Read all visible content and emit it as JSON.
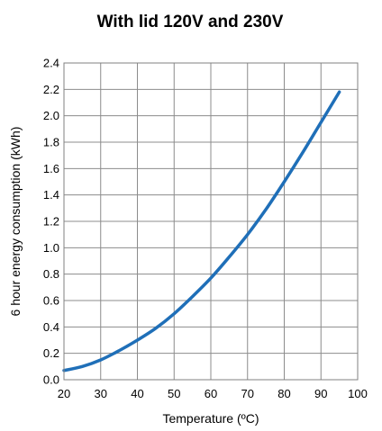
{
  "chart_data": {
    "type": "line",
    "title": "With lid 120V and 230V",
    "xlabel": "Temperature (ºC)",
    "ylabel": "6 hour energy consumption (kWh)",
    "xlim": [
      20,
      100
    ],
    "ylim": [
      0,
      2.4
    ],
    "x_ticks": [
      "20",
      "30",
      "40",
      "50",
      "60",
      "70",
      "80",
      "90",
      "100"
    ],
    "y_ticks": [
      "0.0",
      "0.2",
      "0.4",
      "0.6",
      "0.8",
      "1.0",
      "1.2",
      "1.4",
      "1.6",
      "1.8",
      "2.0",
      "2.2",
      "2.4"
    ],
    "grid": true,
    "legend": "none",
    "series": [
      {
        "color": "#1f6fb8",
        "x": [
          20,
          25,
          30,
          35,
          40,
          45,
          50,
          55,
          60,
          65,
          70,
          75,
          80,
          85,
          90,
          95
        ],
        "y": [
          0.07,
          0.1,
          0.15,
          0.22,
          0.3,
          0.39,
          0.5,
          0.63,
          0.77,
          0.93,
          1.1,
          1.29,
          1.5,
          1.72,
          1.95,
          2.18
        ]
      }
    ]
  }
}
